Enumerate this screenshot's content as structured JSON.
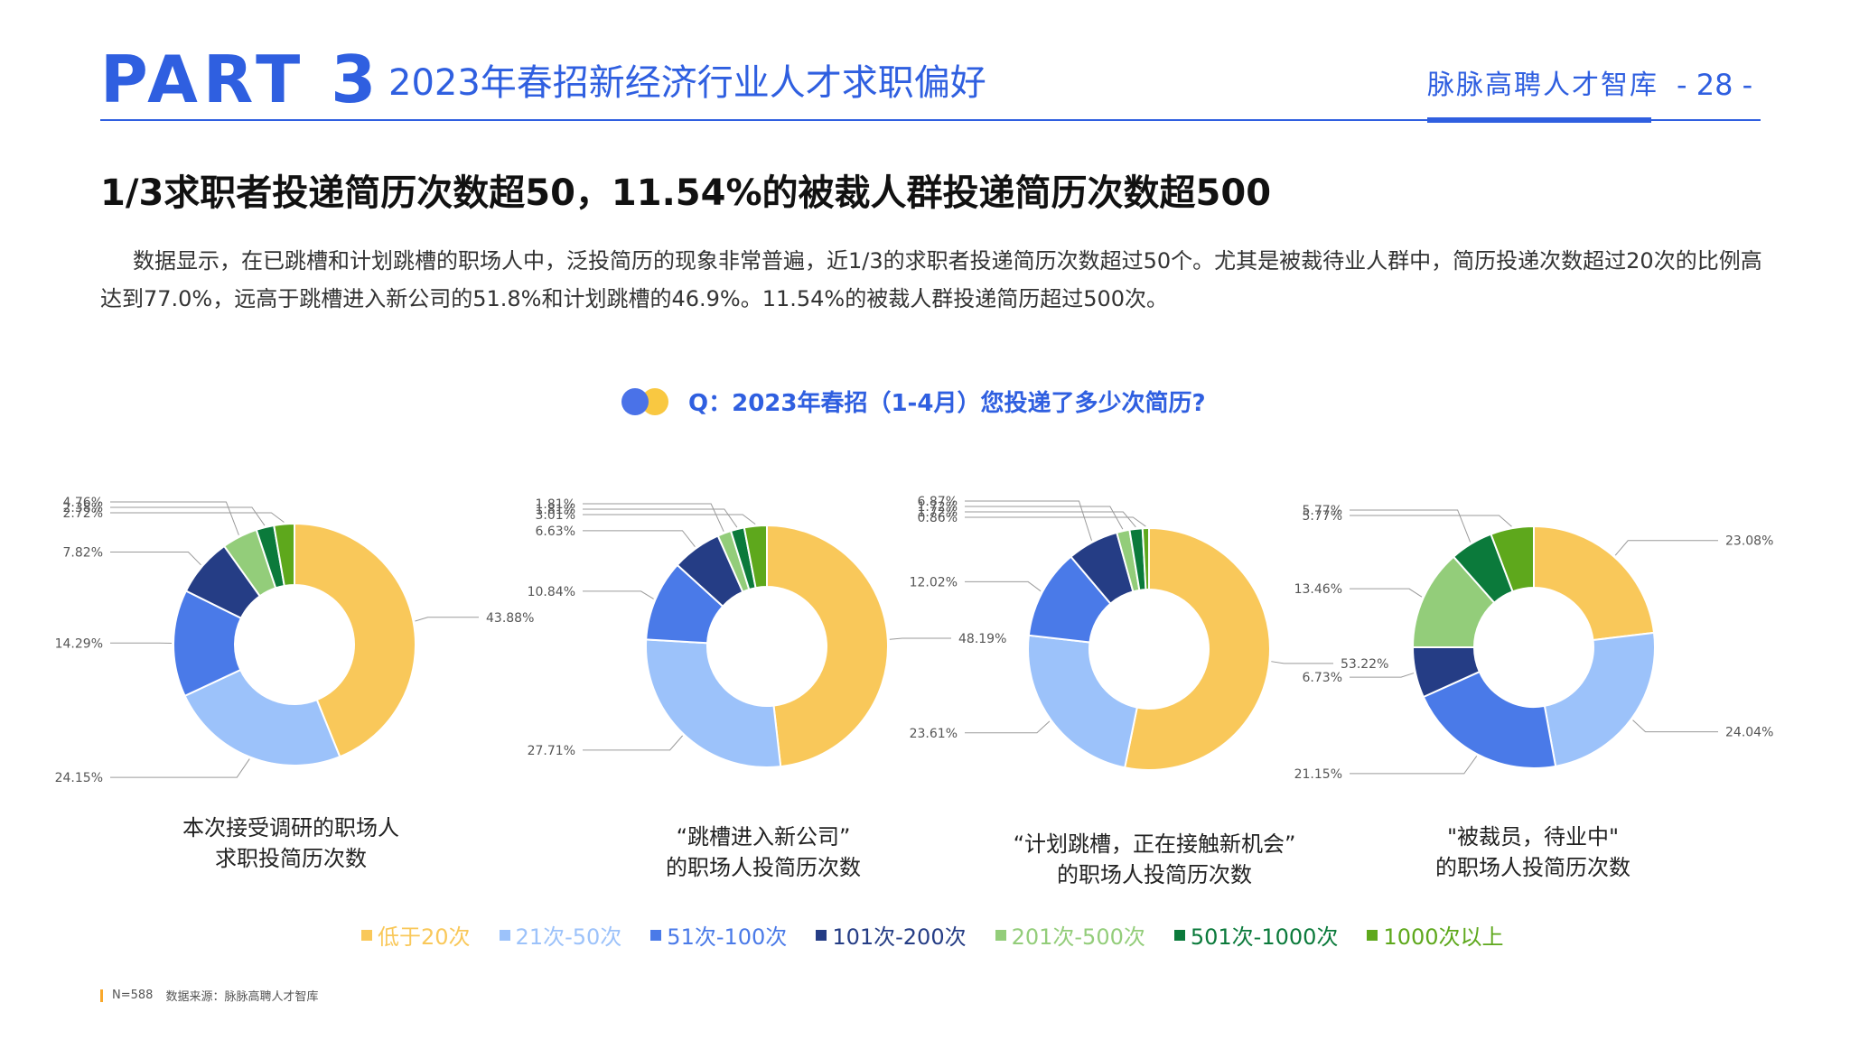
{
  "header": {
    "part_label": "PART",
    "part_number": "3",
    "section_title": "2023年春招新经济行业人才求职偏好",
    "brand": "脉脉高聘人才智库",
    "page_number": "- 28 -"
  },
  "headline": "1/3求职者投递简历次数超50，11.54%的被裁人群投递简历次数超500",
  "paragraph": "数据显示，在已跳槽和计划跳槽的职场人中，泛投简历的现象非常普遍，近1/3的求职者投递简历次数超过50个。尤其是被裁待业人群中，简历投递次数超过20次的比例高达到77.0%，远高于跳槽进入新公司的51.8%和计划跳槽的46.9%。11.54%的被裁人群投递简历超过500次。",
  "question": "Q：2023年春招（1-4月）您投递了多少次简历?",
  "colors": [
    "#f9c85a",
    "#9cc2fa",
    "#4a7ae8",
    "#253d85",
    "#93cd7a",
    "#0b7a3b",
    "#5ea81c"
  ],
  "chart_data": [
    {
      "type": "pie",
      "donut": true,
      "categories": [
        "低于20次",
        "21次-50次",
        "51次-100次",
        "101次-200次",
        "201次-500次",
        "501次-1000次",
        "1000次以上"
      ],
      "values": [
        43.88,
        24.15,
        14.29,
        7.82,
        4.76,
        2.38,
        2.72
      ],
      "labels": [
        "43.88%",
        "24.15%",
        "14.29%",
        "7.82%",
        "4.76%",
        "2.38%",
        "2.72%"
      ],
      "caption": [
        "本次接受调研的职场人",
        "求职投简历次数"
      ]
    },
    {
      "type": "pie",
      "donut": true,
      "categories": [
        "低于20次",
        "21次-50次",
        "51次-100次",
        "101次-200次",
        "201次-500次",
        "501次-1000次",
        "1000次以上"
      ],
      "values": [
        48.19,
        27.71,
        10.84,
        6.63,
        1.81,
        1.81,
        3.01
      ],
      "labels": [
        "48.19%",
        "27.71%",
        "10.84%",
        "6.63%",
        "1.81%",
        "1.81%",
        "3.01%"
      ],
      "caption": [
        "“跳槽进入新公司”",
        "的职场人投简历次数"
      ]
    },
    {
      "type": "pie",
      "donut": true,
      "categories": [
        "低于20次",
        "21次-50次",
        "51次-100次",
        "101次-200次",
        "201次-500次",
        "501次-1000次",
        "1000次以上"
      ],
      "values": [
        53.22,
        23.61,
        12.02,
        6.87,
        1.72,
        1.72,
        0.86
      ],
      "labels": [
        "53.22%",
        "23.61%",
        "12.02%",
        "6.87%",
        "1.72%",
        "1.72%",
        "0.86%"
      ],
      "caption": [
        "“计划跳槽，正在接触新机会”",
        "的职场人投简历次数"
      ]
    },
    {
      "type": "pie",
      "donut": true,
      "categories": [
        "低于20次",
        "21次-50次",
        "51次-100次",
        "101次-200次",
        "201次-500次",
        "501次-1000次",
        "1000次以上"
      ],
      "values": [
        23.08,
        24.04,
        21.15,
        6.73,
        13.46,
        5.77,
        5.77
      ],
      "labels": [
        "23.08%",
        "24.04%",
        "21.15%",
        "6.73%",
        "13.46%",
        "5.77%",
        "5.77%"
      ],
      "caption": [
        "\"被裁员，待业中\"",
        "的职场人投简历次数"
      ]
    }
  ],
  "legend": [
    "低于20次",
    "21次-50次",
    "51次-100次",
    "101次-200次",
    "201次-500次",
    "501次-1000次",
    "1000次以上"
  ],
  "source": {
    "n": "N=588",
    "text": "数据来源：脉脉高聘人才智库"
  }
}
